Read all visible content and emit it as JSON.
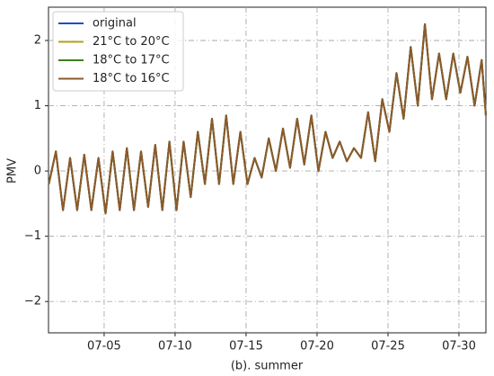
{
  "chart_data": {
    "type": "line",
    "x_label": "(b). summer",
    "y_label": "PMV",
    "x": [
      1.1,
      1.6,
      2.1,
      2.6,
      3.1,
      3.6,
      4.1,
      4.6,
      5.1,
      5.6,
      6.1,
      6.6,
      7.1,
      7.6,
      8.1,
      8.6,
      9.1,
      9.6,
      10.1,
      10.6,
      11.1,
      11.6,
      12.1,
      12.6,
      13.1,
      13.6,
      14.1,
      14.6,
      15.1,
      15.6,
      16.1,
      16.6,
      17.1,
      17.6,
      18.1,
      18.6,
      19.1,
      19.6,
      20.1,
      20.6,
      21.1,
      21.6,
      22.1,
      22.6,
      23.1,
      23.6,
      24.1,
      24.6,
      25.1,
      25.6,
      26.1,
      26.6,
      27.1,
      27.6,
      28.1,
      28.6,
      29.1,
      29.6,
      30.1,
      30.6,
      31.1,
      31.6,
      31.9
    ],
    "series": [
      {
        "name": "original",
        "color": "#1f4fbf",
        "values": [
          -0.2,
          0.3,
          -0.6,
          0.2,
          -0.6,
          0.25,
          -0.6,
          0.2,
          -0.65,
          0.3,
          -0.6,
          0.35,
          -0.6,
          0.3,
          -0.55,
          0.4,
          -0.6,
          0.45,
          -0.6,
          0.45,
          -0.4,
          0.6,
          -0.2,
          0.8,
          -0.2,
          0.85,
          -0.2,
          0.6,
          -0.2,
          0.2,
          -0.1,
          0.5,
          0.0,
          0.65,
          0.05,
          0.8,
          0.1,
          0.85,
          0.0,
          0.6,
          0.2,
          0.45,
          0.15,
          0.35,
          0.2,
          0.9,
          0.15,
          1.1,
          0.6,
          1.5,
          0.8,
          1.9,
          1.0,
          2.25,
          1.1,
          1.8,
          1.1,
          1.8,
          1.2,
          1.75,
          1.0,
          1.7,
          0.85
        ]
      },
      {
        "name": "21°C to 20°C",
        "color": "#b5a01a",
        "values": [
          -0.2,
          0.3,
          -0.6,
          0.2,
          -0.6,
          0.25,
          -0.6,
          0.2,
          -0.65,
          0.3,
          -0.6,
          0.35,
          -0.6,
          0.3,
          -0.55,
          0.4,
          -0.6,
          0.45,
          -0.6,
          0.45,
          -0.4,
          0.6,
          -0.2,
          0.8,
          -0.2,
          0.85,
          -0.2,
          0.6,
          -0.2,
          0.2,
          -0.1,
          0.5,
          0.0,
          0.65,
          0.05,
          0.8,
          0.1,
          0.85,
          0.0,
          0.6,
          0.2,
          0.45,
          0.15,
          0.35,
          0.2,
          0.9,
          0.15,
          1.1,
          0.6,
          1.5,
          0.8,
          1.9,
          1.0,
          2.25,
          1.1,
          1.8,
          1.1,
          1.8,
          1.2,
          1.75,
          1.0,
          1.7,
          0.85
        ]
      },
      {
        "name": "18°C to 17°C",
        "color": "#3f7f1f",
        "values": [
          -0.2,
          0.3,
          -0.6,
          0.2,
          -0.6,
          0.25,
          -0.6,
          0.2,
          -0.65,
          0.3,
          -0.6,
          0.35,
          -0.6,
          0.3,
          -0.55,
          0.4,
          -0.6,
          0.45,
          -0.6,
          0.45,
          -0.4,
          0.6,
          -0.2,
          0.8,
          -0.2,
          0.85,
          -0.2,
          0.6,
          -0.2,
          0.2,
          -0.1,
          0.5,
          0.0,
          0.65,
          0.05,
          0.8,
          0.1,
          0.85,
          0.0,
          0.6,
          0.2,
          0.45,
          0.15,
          0.35,
          0.2,
          0.9,
          0.15,
          1.1,
          0.6,
          1.5,
          0.8,
          1.9,
          1.0,
          2.25,
          1.1,
          1.8,
          1.1,
          1.8,
          1.2,
          1.75,
          1.0,
          1.7,
          0.85
        ]
      },
      {
        "name": "18°C to 16°C",
        "color": "#8c5a2e",
        "values": [
          -0.2,
          0.3,
          -0.6,
          0.2,
          -0.6,
          0.25,
          -0.6,
          0.2,
          -0.65,
          0.3,
          -0.6,
          0.35,
          -0.6,
          0.3,
          -0.55,
          0.4,
          -0.6,
          0.45,
          -0.6,
          0.45,
          -0.4,
          0.6,
          -0.2,
          0.8,
          -0.2,
          0.85,
          -0.2,
          0.6,
          -0.2,
          0.2,
          -0.1,
          0.5,
          0.0,
          0.65,
          0.05,
          0.8,
          0.1,
          0.85,
          0.0,
          0.6,
          0.2,
          0.45,
          0.15,
          0.35,
          0.2,
          0.9,
          0.15,
          1.1,
          0.6,
          1.5,
          0.8,
          1.9,
          1.0,
          2.25,
          1.1,
          1.8,
          1.1,
          1.8,
          1.2,
          1.75,
          1.0,
          1.7,
          0.85
        ]
      }
    ],
    "xlim": [
      1.08,
      31.9
    ],
    "xticks": [
      {
        "value": 5,
        "label": "07-05"
      },
      {
        "value": 10,
        "label": "07-10"
      },
      {
        "value": 15,
        "label": "07-15"
      },
      {
        "value": 20,
        "label": "07-20"
      },
      {
        "value": 25,
        "label": "07-25"
      },
      {
        "value": 30,
        "label": "07-30"
      }
    ],
    "ylim": [
      -2.48,
      2.51
    ],
    "yticks": [
      {
        "value": -2,
        "label": "−2"
      },
      {
        "value": -1,
        "label": "−1"
      },
      0,
      1,
      2
    ],
    "grid": true,
    "legend": "upper-left"
  }
}
